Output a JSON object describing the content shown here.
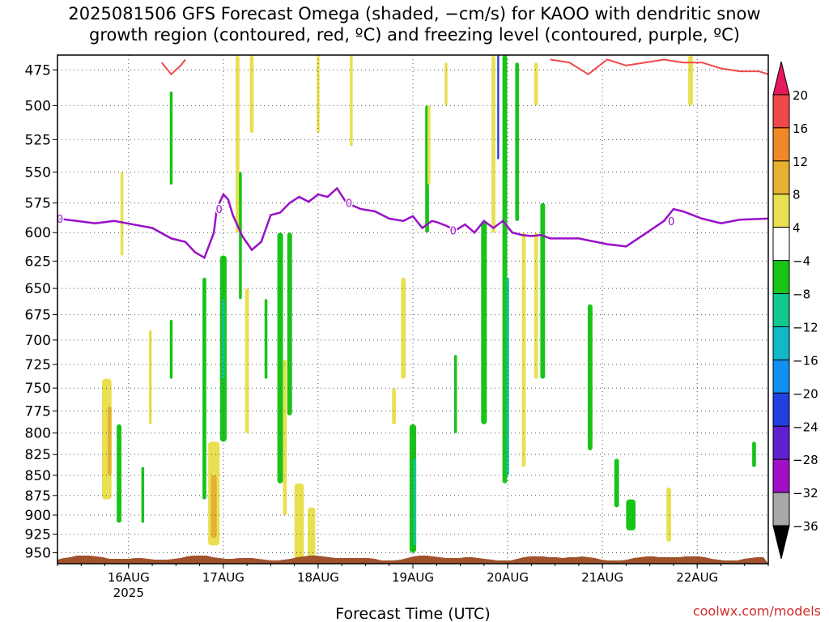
{
  "title_line1": "2025081506 GFS Forecast Omega (shaded, −cm/s) for KAOO with dendritic snow",
  "title_line2": "growth region (contoured, red, ºC) and freezing level (contoured, purple, ºC)",
  "watermark": "coolwx.com/models",
  "chart_data": {
    "type": "heatmap",
    "xlabel": "Forecast Time (UTC)",
    "ylabel": "",
    "x_ticks": [
      {
        "label": "16AUG",
        "sublabel": "2025",
        "t": 0.75
      },
      {
        "label": "17AUG",
        "sublabel": "",
        "t": 1.75
      },
      {
        "label": "18AUG",
        "sublabel": "",
        "t": 2.75
      },
      {
        "label": "19AUG",
        "sublabel": "",
        "t": 3.75
      },
      {
        "label": "20AUG",
        "sublabel": "",
        "t": 4.75
      },
      {
        "label": "21AUG",
        "sublabel": "",
        "t": 5.75
      },
      {
        "label": "22AUG",
        "sublabel": "",
        "t": 6.75
      }
    ],
    "xlim_days": [
      0.0,
      7.5
    ],
    "y_ticks": [
      475,
      500,
      525,
      550,
      575,
      600,
      625,
      650,
      675,
      700,
      725,
      750,
      775,
      800,
      825,
      850,
      875,
      900,
      925,
      950
    ],
    "ylim_hpa": [
      465,
      965
    ],
    "y_scale": "log-pressure",
    "grid": true,
    "colorbar": {
      "labels": [
        "20",
        "16",
        "12",
        "8",
        "4",
        "−4",
        "−8",
        "−12",
        "−16",
        "−20",
        "−24",
        "−28",
        "−32",
        "−36"
      ],
      "colors": [
        "#e8185c",
        "#f04848",
        "#f08828",
        "#e6b030",
        "#e8e050",
        "#ffffff",
        "#18c418",
        "#10c890",
        "#10b8c8",
        "#1090f0",
        "#2040e0",
        "#6020d0",
        "#a010c8",
        "#a8a8a8",
        "#000000"
      ]
    },
    "shading": [
      {
        "t": 0.52,
        "p_top": 740,
        "p_bot": 880,
        "w": 0.1,
        "value": 6
      },
      {
        "t": 0.55,
        "p_top": 770,
        "p_bot": 850,
        "w": 0.04,
        "value": 10
      },
      {
        "t": 0.65,
        "p_top": 790,
        "p_bot": 910,
        "w": 0.05,
        "value": -6
      },
      {
        "t": 0.68,
        "p_top": 550,
        "p_bot": 620,
        "w": 0.03,
        "value": 6
      },
      {
        "t": 0.9,
        "p_top": 840,
        "p_bot": 910,
        "w": 0.03,
        "value": -6
      },
      {
        "t": 0.98,
        "p_top": 690,
        "p_bot": 790,
        "w": 0.03,
        "value": 6
      },
      {
        "t": 1.2,
        "p_top": 490,
        "p_bot": 560,
        "w": 0.03,
        "value": -6
      },
      {
        "t": 1.2,
        "p_top": 680,
        "p_bot": 740,
        "w": 0.03,
        "value": -6
      },
      {
        "t": 1.55,
        "p_top": 640,
        "p_bot": 880,
        "w": 0.04,
        "value": -6
      },
      {
        "t": 1.65,
        "p_top": 810,
        "p_bot": 940,
        "w": 0.12,
        "value": 6
      },
      {
        "t": 1.65,
        "p_top": 850,
        "p_bot": 930,
        "w": 0.06,
        "value": 11
      },
      {
        "t": 1.75,
        "p_top": 620,
        "p_bot": 810,
        "w": 0.07,
        "value": -6
      },
      {
        "t": 1.75,
        "p_top": 660,
        "p_bot": 740,
        "w": 0.03,
        "value": -10
      },
      {
        "t": 1.9,
        "p_top": 465,
        "p_bot": 600,
        "w": 0.04,
        "value": 6
      },
      {
        "t": 1.93,
        "p_top": 550,
        "p_bot": 660,
        "w": 0.03,
        "value": -6
      },
      {
        "t": 2.0,
        "p_top": 650,
        "p_bot": 800,
        "w": 0.04,
        "value": 6
      },
      {
        "t": 2.05,
        "p_top": 465,
        "p_bot": 520,
        "w": 0.04,
        "value": 6
      },
      {
        "t": 2.2,
        "p_top": 660,
        "p_bot": 740,
        "w": 0.03,
        "value": -6
      },
      {
        "t": 2.35,
        "p_top": 600,
        "p_bot": 860,
        "w": 0.06,
        "value": -6
      },
      {
        "t": 2.4,
        "p_top": 720,
        "p_bot": 900,
        "w": 0.04,
        "value": 6
      },
      {
        "t": 2.45,
        "p_top": 600,
        "p_bot": 780,
        "w": 0.05,
        "value": -6
      },
      {
        "t": 2.55,
        "p_top": 860,
        "p_bot": 960,
        "w": 0.1,
        "value": 6
      },
      {
        "t": 2.68,
        "p_top": 890,
        "p_bot": 960,
        "w": 0.08,
        "value": 6
      },
      {
        "t": 2.75,
        "p_top": 465,
        "p_bot": 520,
        "w": 0.03,
        "value": 6
      },
      {
        "t": 3.1,
        "p_top": 465,
        "p_bot": 530,
        "w": 0.03,
        "value": 6
      },
      {
        "t": 3.55,
        "p_top": 750,
        "p_bot": 790,
        "w": 0.04,
        "value": 6
      },
      {
        "t": 3.65,
        "p_top": 640,
        "p_bot": 740,
        "w": 0.05,
        "value": 6
      },
      {
        "t": 3.75,
        "p_top": 790,
        "p_bot": 950,
        "w": 0.07,
        "value": -6
      },
      {
        "t": 3.77,
        "p_top": 830,
        "p_bot": 940,
        "w": 0.03,
        "value": -10
      },
      {
        "t": 3.9,
        "p_top": 500,
        "p_bot": 600,
        "w": 0.04,
        "value": -6
      },
      {
        "t": 3.92,
        "p_top": 500,
        "p_bot": 560,
        "w": 0.03,
        "value": 6
      },
      {
        "t": 4.1,
        "p_top": 470,
        "p_bot": 500,
        "w": 0.03,
        "value": 6
      },
      {
        "t": 4.2,
        "p_top": 715,
        "p_bot": 800,
        "w": 0.03,
        "value": -6
      },
      {
        "t": 4.5,
        "p_top": 590,
        "p_bot": 790,
        "w": 0.06,
        "value": -6
      },
      {
        "t": 4.6,
        "p_top": 465,
        "p_bot": 600,
        "w": 0.04,
        "value": 6
      },
      {
        "t": 4.65,
        "p_top": 465,
        "p_bot": 540,
        "w": 0.02,
        "value": -22
      },
      {
        "t": 4.72,
        "p_top": 465,
        "p_bot": 860,
        "w": 0.05,
        "value": -6
      },
      {
        "t": 4.75,
        "p_top": 640,
        "p_bot": 850,
        "w": 0.03,
        "value": -12
      },
      {
        "t": 4.85,
        "p_top": 470,
        "p_bot": 590,
        "w": 0.04,
        "value": -6
      },
      {
        "t": 4.92,
        "p_top": 600,
        "p_bot": 840,
        "w": 0.04,
        "value": 6
      },
      {
        "t": 5.05,
        "p_top": 470,
        "p_bot": 500,
        "w": 0.04,
        "value": 6
      },
      {
        "t": 5.05,
        "p_top": 600,
        "p_bot": 740,
        "w": 0.04,
        "value": 6
      },
      {
        "t": 5.12,
        "p_top": 575,
        "p_bot": 740,
        "w": 0.05,
        "value": -6
      },
      {
        "t": 5.62,
        "p_top": 665,
        "p_bot": 820,
        "w": 0.05,
        "value": -6
      },
      {
        "t": 5.9,
        "p_top": 830,
        "p_bot": 890,
        "w": 0.05,
        "value": -6
      },
      {
        "t": 6.05,
        "p_top": 880,
        "p_bot": 920,
        "w": 0.1,
        "value": -6
      },
      {
        "t": 6.45,
        "p_top": 865,
        "p_bot": 935,
        "w": 0.05,
        "value": 6
      },
      {
        "t": 6.68,
        "p_top": 465,
        "p_bot": 500,
        "w": 0.05,
        "value": 6
      },
      {
        "t": 7.35,
        "p_top": 810,
        "p_bot": 840,
        "w": 0.04,
        "value": -6
      }
    ],
    "freezing_level": {
      "color": "#9a10c8",
      "label": "0",
      "t": [
        0.0,
        0.2,
        0.4,
        0.6,
        0.8,
        1.0,
        1.2,
        1.35,
        1.45,
        1.55,
        1.65,
        1.68,
        1.75,
        1.8,
        1.85,
        1.95,
        2.05,
        2.15,
        2.25,
        2.35,
        2.45,
        2.55,
        2.65,
        2.75,
        2.85,
        2.95,
        3.05,
        3.2,
        3.35,
        3.5,
        3.65,
        3.75,
        3.85,
        3.95,
        4.0,
        4.1,
        4.2,
        4.3,
        4.4,
        4.5,
        4.6,
        4.7,
        4.8,
        4.9,
        5.0,
        5.1,
        5.2,
        5.5,
        5.8,
        6.0,
        6.2,
        6.4,
        6.5,
        6.6,
        6.8,
        7.0,
        7.2,
        7.5
      ],
      "p": [
        588,
        590,
        592,
        590,
        593,
        596,
        605,
        608,
        617,
        622,
        600,
        580,
        568,
        572,
        585,
        603,
        615,
        608,
        585,
        583,
        575,
        570,
        574,
        568,
        570,
        563,
        575,
        580,
        582,
        588,
        590,
        586,
        596,
        590,
        591,
        594,
        598,
        593,
        600,
        590,
        596,
        590,
        600,
        602,
        603,
        602,
        605,
        605,
        610,
        612,
        601,
        590,
        580,
        582,
        588,
        592,
        589,
        588
      ]
    },
    "dgz_contour": {
      "color": "#f04848",
      "segments": [
        {
          "t": [
            1.1,
            1.2,
            1.3,
            1.35
          ],
          "p": [
            470,
            478,
            472,
            468
          ]
        },
        {
          "t": [
            5.2,
            5.4,
            5.6,
            5.8,
            6.0,
            6.2,
            6.4,
            6.6,
            6.8,
            7.0,
            7.2,
            7.4,
            7.5
          ],
          "p": [
            468,
            470,
            478,
            468,
            472,
            470,
            468,
            470,
            470,
            474,
            476,
            476,
            478
          ]
        }
      ]
    },
    "surface_color": "#a0522d"
  }
}
